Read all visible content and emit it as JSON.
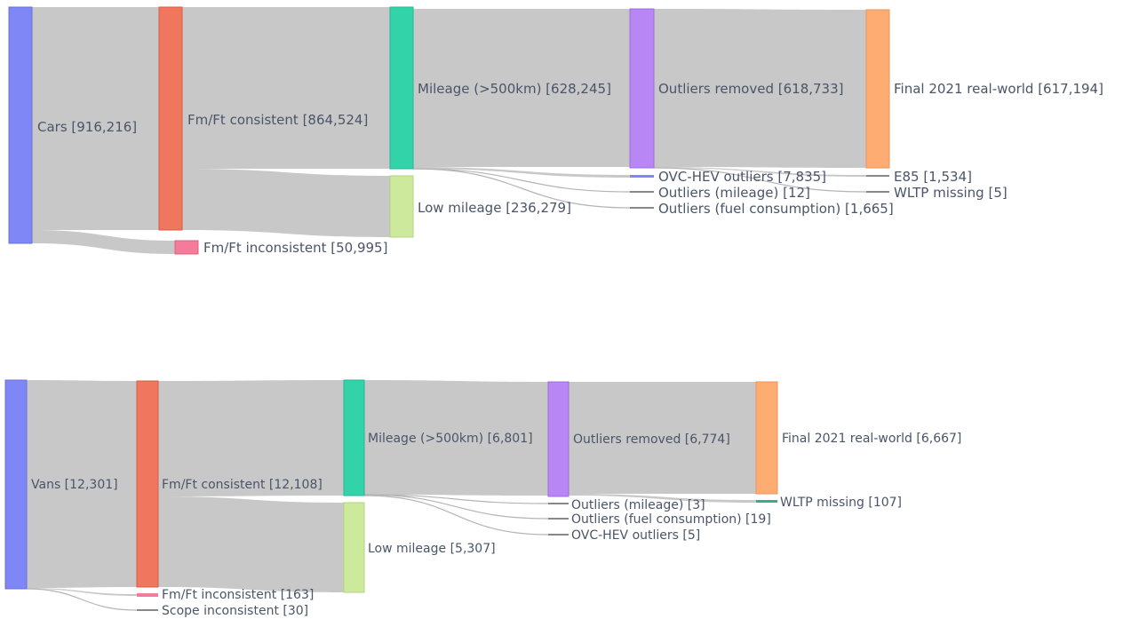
{
  "diagrams": [
    {
      "id": "cars",
      "nodes": {
        "cars": {
          "label": "Cars [916,216]",
          "color": "#7f86f5"
        },
        "fm_cons": {
          "label": "Fm/Ft consistent [864,524]",
          "color": "#f0765d"
        },
        "fm_incons": {
          "label": "Fm/Ft inconsistent [50,995]",
          "color": "#f47c9a"
        },
        "mileage": {
          "label": "Mileage (>500km) [628,245]",
          "color": "#33d3aa"
        },
        "low_mileage": {
          "label": "Low mileage [236,279]",
          "color": "#cdea9c"
        },
        "outliers_removed": {
          "label": "Outliers removed [618,733]",
          "color": "#b886f5"
        },
        "ovc": {
          "label": "OVC-HEV outliers [7,835]",
          "color": "#7f86f5"
        },
        "out_mileage": {
          "label": "Outliers (mileage) [12]",
          "color": "#888888"
        },
        "out_fuel": {
          "label": "Outliers (fuel consumption) [1,665]",
          "color": "#888888"
        },
        "final": {
          "label": "Final 2021 real-world [617,194]",
          "color": "#ffac72"
        },
        "e85": {
          "label": "E85 [1,534]",
          "color": "#888888"
        },
        "wltp": {
          "label": "WLTP missing [5]",
          "color": "#888888"
        }
      }
    },
    {
      "id": "vans",
      "nodes": {
        "vans": {
          "label": "Vans [12,301]",
          "color": "#7f86f5"
        },
        "fm_cons": {
          "label": "Fm/Ft consistent [12,108]",
          "color": "#f0765d"
        },
        "fm_incons": {
          "label": "Fm/Ft inconsistent [163]",
          "color": "#f47c9a"
        },
        "scope_incons": {
          "label": "Scope inconsistent [30]",
          "color": "#888888"
        },
        "mileage": {
          "label": "Mileage (>500km) [6,801]",
          "color": "#33d3aa"
        },
        "low_mileage": {
          "label": "Low mileage [5,307]",
          "color": "#cdea9c"
        },
        "outliers_removed": {
          "label": "Outliers removed [6,774]",
          "color": "#b886f5"
        },
        "out_mileage": {
          "label": "Outliers (mileage) [3]",
          "color": "#888888"
        },
        "out_fuel": {
          "label": "Outliers (fuel consumption) [19]",
          "color": "#888888"
        },
        "ovc": {
          "label": "OVC-HEV outliers [5]",
          "color": "#888888"
        },
        "final": {
          "label": "Final 2021 real-world [6,667]",
          "color": "#ffac72"
        },
        "wltp": {
          "label": "WLTP missing [107]",
          "color": "#33b08a"
        }
      }
    }
  ]
}
